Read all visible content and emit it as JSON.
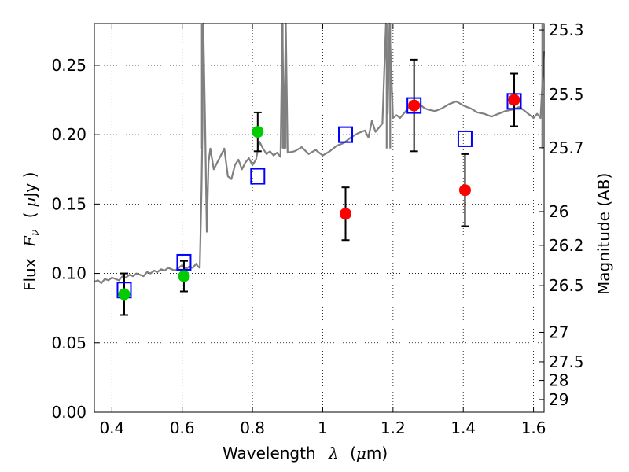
{
  "chart_data": {
    "type": "scatter",
    "x_ticks": [
      "0.4",
      "0.6",
      "0.8",
      "1",
      "1.2",
      "1.4",
      "1.6"
    ],
    "y_ticks": [
      "0.00",
      "0.05",
      "0.10",
      "0.15",
      "0.20",
      "0.25"
    ],
    "right_ticks": [
      "25.3",
      "25.5",
      "25.7",
      "26",
      "26.2",
      "26.5",
      "27",
      "27.5",
      "28",
      "29"
    ],
    "xlim": [
      0.35,
      1.63
    ],
    "ylim": [
      0.0,
      0.28
    ],
    "grid": true,
    "labels": {
      "x_text": "Wavelength",
      "x_symbol": "λ",
      "x_unit_open": "(",
      "x_unit_mu": "μ",
      "x_unit_rest": "m)",
      "y_text": "Flux",
      "y_symbol_base": "F",
      "y_symbol_sub": "ν",
      "y_unit_open": "(",
      "y_unit_mu": "μ",
      "y_unit_rest": "Jy )",
      "right": "Magnitude (AB)"
    },
    "colors": {
      "model": "#808080",
      "model_boxes": "#0000ff",
      "green": "#00cc00",
      "red": "#ff0000",
      "errorbar": "#000000"
    },
    "model_spectrum": {
      "x": [
        0.35,
        0.36,
        0.37,
        0.38,
        0.39,
        0.4,
        0.41,
        0.42,
        0.43,
        0.44,
        0.45,
        0.46,
        0.47,
        0.48,
        0.49,
        0.5,
        0.51,
        0.52,
        0.53,
        0.54,
        0.55,
        0.56,
        0.57,
        0.58,
        0.59,
        0.6,
        0.61,
        0.62,
        0.63,
        0.64,
        0.645,
        0.65,
        0.655,
        0.656,
        0.658,
        0.66,
        0.665,
        0.67,
        0.675,
        0.68,
        0.69,
        0.7,
        0.71,
        0.72,
        0.73,
        0.74,
        0.75,
        0.76,
        0.77,
        0.78,
        0.79,
        0.8,
        0.81,
        0.82,
        0.83,
        0.84,
        0.85,
        0.86,
        0.87,
        0.88,
        0.885,
        0.89,
        0.895,
        0.9,
        0.92,
        0.94,
        0.96,
        0.98,
        1.0,
        1.02,
        1.04,
        1.06,
        1.08,
        1.1,
        1.12,
        1.13,
        1.14,
        1.15,
        1.16,
        1.17,
        1.18,
        1.185,
        1.19,
        1.2,
        1.21,
        1.22,
        1.23,
        1.24,
        1.25,
        1.26,
        1.27,
        1.28,
        1.29,
        1.3,
        1.32,
        1.34,
        1.36,
        1.38,
        1.4,
        1.42,
        1.44,
        1.46,
        1.48,
        1.5,
        1.52,
        1.54,
        1.56,
        1.58,
        1.6,
        1.61,
        1.62,
        1.63
      ],
      "y": [
        0.094,
        0.095,
        0.093,
        0.096,
        0.095,
        0.097,
        0.096,
        0.095,
        0.098,
        0.097,
        0.099,
        0.098,
        0.1,
        0.099,
        0.098,
        0.101,
        0.1,
        0.102,
        0.101,
        0.103,
        0.102,
        0.104,
        0.103,
        0.102,
        0.104,
        0.106,
        0.103,
        0.105,
        0.104,
        0.107,
        0.105,
        0.104,
        0.16,
        0.175,
        0.21,
        0.28,
        0.21,
        0.13,
        0.18,
        0.19,
        0.175,
        0.18,
        0.185,
        0.19,
        0.17,
        0.168,
        0.178,
        0.182,
        0.175,
        0.18,
        0.183,
        0.178,
        0.182,
        0.195,
        0.19,
        0.186,
        0.188,
        0.185,
        0.187,
        0.184,
        0.28,
        0.19,
        0.28,
        0.187,
        0.188,
        0.191,
        0.186,
        0.189,
        0.185,
        0.188,
        0.192,
        0.194,
        0.198,
        0.201,
        0.203,
        0.198,
        0.21,
        0.202,
        0.205,
        0.208,
        0.28,
        0.215,
        0.28,
        0.212,
        0.214,
        0.212,
        0.215,
        0.218,
        0.221,
        0.221,
        0.223,
        0.221,
        0.219,
        0.218,
        0.217,
        0.219,
        0.222,
        0.224,
        0.221,
        0.219,
        0.216,
        0.215,
        0.213,
        0.215,
        0.217,
        0.218,
        0.22,
        0.216,
        0.212,
        0.215,
        0.212,
        0.26
      ],
      "spikes": [
        {
          "x": 0.656,
          "y": 0.28
        },
        {
          "x": 0.886,
          "y": 0.28
        },
        {
          "x": 0.894,
          "y": 0.28
        },
        {
          "x": 1.182,
          "y": 0.28
        },
        {
          "x": 1.192,
          "y": 0.28
        },
        {
          "x": 1.625,
          "y": 0.28
        }
      ]
    },
    "model_points": [
      {
        "x": 0.435,
        "y": 0.088
      },
      {
        "x": 0.605,
        "y": 0.108
      },
      {
        "x": 0.815,
        "y": 0.17
      },
      {
        "x": 1.065,
        "y": 0.2
      },
      {
        "x": 1.26,
        "y": 0.221
      },
      {
        "x": 1.405,
        "y": 0.197
      },
      {
        "x": 1.545,
        "y": 0.224
      }
    ],
    "green_points": [
      {
        "x": 0.435,
        "y": 0.085,
        "err": 0.015
      },
      {
        "x": 0.605,
        "y": 0.098,
        "err": 0.011
      },
      {
        "x": 0.815,
        "y": 0.202,
        "err": 0.014
      }
    ],
    "red_points": [
      {
        "x": 1.065,
        "y": 0.143,
        "err": 0.019
      },
      {
        "x": 1.26,
        "y": 0.221,
        "err": 0.033
      },
      {
        "x": 1.405,
        "y": 0.16,
        "err": 0.026
      },
      {
        "x": 1.545,
        "y": 0.225,
        "err": 0.019
      }
    ]
  }
}
